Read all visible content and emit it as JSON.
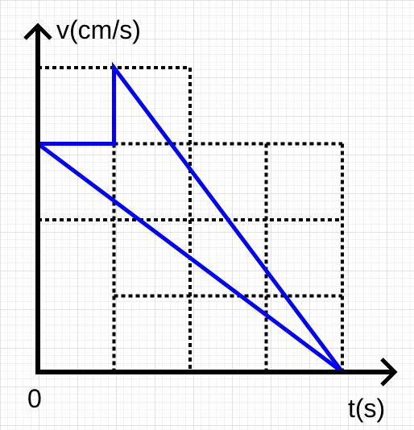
{
  "chart_data": {
    "type": "line",
    "xlabel": "t(s)",
    "ylabel": "v(cm/s)",
    "origin_label": "0",
    "xlim": [
      0,
      4
    ],
    "ylim": [
      0,
      4
    ],
    "dashed_guides": [
      {
        "from": [
          0,
          4
        ],
        "to": [
          2,
          4
        ]
      },
      {
        "from": [
          2,
          4
        ],
        "to": [
          2,
          0
        ]
      },
      {
        "from": [
          1,
          3
        ],
        "to": [
          4,
          3
        ]
      },
      {
        "from": [
          4,
          3
        ],
        "to": [
          4,
          0
        ]
      },
      {
        "from": [
          3,
          3
        ],
        "to": [
          3,
          0
        ]
      },
      {
        "from": [
          1,
          3
        ],
        "to": [
          1,
          0
        ]
      },
      {
        "from": [
          0,
          2
        ],
        "to": [
          4,
          2
        ]
      },
      {
        "from": [
          1,
          1
        ],
        "to": [
          4,
          1
        ]
      }
    ],
    "series": [
      {
        "x": [
          0,
          4
        ],
        "y": [
          3,
          0
        ],
        "color": "#0000ff"
      },
      {
        "x": [
          0,
          1,
          1,
          4
        ],
        "y": [
          3,
          3,
          4,
          0
        ],
        "color": "#0000ff"
      }
    ]
  }
}
